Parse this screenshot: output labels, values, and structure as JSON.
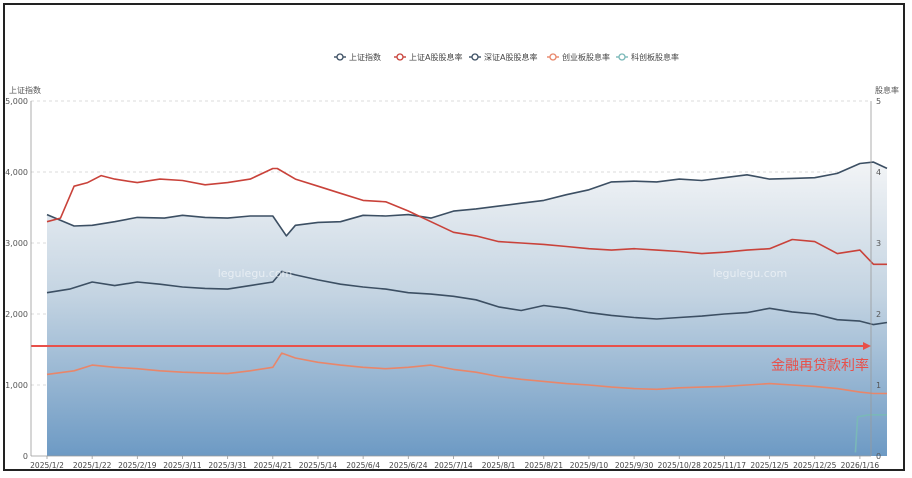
{
  "chart_data": {
    "type": "line",
    "legend_position": "top-center",
    "left_axis_title": "上证指数",
    "right_axis_title": "股息率",
    "left_ylim": [
      0,
      5000
    ],
    "right_ylim": [
      0,
      5
    ],
    "left_ticks": [
      "0",
      "1,000",
      "2,000",
      "3,000",
      "4,000",
      "5,000"
    ],
    "right_ticks": [
      "0",
      "1",
      "2",
      "3",
      "4",
      "5"
    ],
    "x_ticks": [
      "2025/1/2",
      "2025/1/22",
      "2025/2/19",
      "2025/3/11",
      "2025/3/31",
      "2025/4/21",
      "2025/5/14",
      "2025/6/4",
      "2025/6/24",
      "2025/7/14",
      "2025/8/1",
      "2025/8/21",
      "2025/9/10",
      "2025/9/30",
      "2025/10/28",
      "2025/11/17",
      "2025/12/5",
      "2025/12/25",
      "2026/1/16"
    ],
    "watermarks": [
      "legulegu.com",
      "legulegu.com"
    ],
    "reference_line": {
      "label": "金融再贷款利率",
      "value": 1.55,
      "color": "#e8504a"
    },
    "series": [
      {
        "name": "上证指数",
        "axis": "left",
        "color": "#3c4f63",
        "area": true,
        "x": [
          0,
          0.6,
          1,
          1.5,
          2,
          2.6,
          3,
          3.5,
          4,
          4.5,
          5,
          5.3,
          5.5,
          6,
          6.5,
          7,
          7.5,
          8,
          8.5,
          9,
          9.5,
          10,
          10.5,
          11,
          11.5,
          12,
          12.5,
          13,
          13.5,
          14,
          14.5,
          15,
          15.5,
          16,
          16.5,
          17,
          17.5,
          18,
          18.3,
          18.6
        ],
        "values": [
          3400,
          3240,
          3250,
          3300,
          3360,
          3350,
          3390,
          3360,
          3350,
          3380,
          3380,
          3100,
          3250,
          3290,
          3300,
          3390,
          3380,
          3400,
          3350,
          3450,
          3480,
          3520,
          3560,
          3600,
          3680,
          3750,
          3860,
          3870,
          3860,
          3900,
          3880,
          3920,
          3960,
          3900,
          3910,
          3920,
          3980,
          4120,
          4140,
          4050
        ]
      },
      {
        "name": "上证A股股息率",
        "axis": "right",
        "color": "#c9423a",
        "x": [
          0,
          0.3,
          0.6,
          0.9,
          1.2,
          1.5,
          2,
          2.5,
          3,
          3.5,
          4,
          4.5,
          5,
          5.1,
          5.5,
          6,
          6.5,
          7,
          7.5,
          8,
          8.5,
          9,
          9.5,
          10,
          10.5,
          11,
          11.5,
          12,
          12.5,
          13,
          13.5,
          14,
          14.5,
          15,
          15.5,
          16,
          16.5,
          17,
          17.5,
          18,
          18.3,
          18.6
        ],
        "values": [
          3.3,
          3.35,
          3.8,
          3.85,
          3.95,
          3.9,
          3.85,
          3.9,
          3.88,
          3.82,
          3.85,
          3.9,
          4.05,
          4.05,
          3.9,
          3.8,
          3.7,
          3.6,
          3.58,
          3.45,
          3.3,
          3.15,
          3.1,
          3.02,
          3.0,
          2.98,
          2.95,
          2.92,
          2.9,
          2.92,
          2.9,
          2.88,
          2.85,
          2.87,
          2.9,
          2.92,
          3.05,
          3.02,
          2.85,
          2.9,
          2.7,
          2.7
        ]
      },
      {
        "name": "深证A股股息率",
        "axis": "right",
        "color": "#3c4f63",
        "x": [
          0,
          0.5,
          1,
          1.5,
          2,
          2.5,
          3,
          3.5,
          4,
          4.5,
          5,
          5.2,
          5.5,
          6,
          6.5,
          7,
          7.5,
          8,
          8.5,
          9,
          9.5,
          10,
          10.5,
          11,
          11.5,
          12,
          12.5,
          13,
          13.5,
          14,
          14.5,
          15,
          15.5,
          16,
          16.5,
          17,
          17.5,
          18,
          18.3,
          18.6
        ],
        "values": [
          2.3,
          2.35,
          2.45,
          2.4,
          2.45,
          2.42,
          2.38,
          2.36,
          2.35,
          2.4,
          2.45,
          2.6,
          2.55,
          2.48,
          2.42,
          2.38,
          2.35,
          2.3,
          2.28,
          2.25,
          2.2,
          2.1,
          2.05,
          2.12,
          2.08,
          2.02,
          1.98,
          1.95,
          1.93,
          1.95,
          1.97,
          2.0,
          2.02,
          2.08,
          2.03,
          2.0,
          1.92,
          1.9,
          1.85,
          1.88
        ]
      },
      {
        "name": "创业板股息率",
        "axis": "right",
        "color": "#e8866a",
        "x": [
          0,
          0.6,
          1,
          1.5,
          2,
          2.5,
          3,
          3.5,
          4,
          4.5,
          5,
          5.2,
          5.5,
          6,
          6.5,
          7,
          7.5,
          8,
          8.5,
          9,
          9.5,
          10,
          10.5,
          11,
          11.5,
          12,
          12.5,
          13,
          13.5,
          14,
          14.5,
          15,
          15.5,
          16,
          16.5,
          17,
          17.5,
          18,
          18.3,
          18.6
        ],
        "values": [
          1.15,
          1.2,
          1.28,
          1.25,
          1.23,
          1.2,
          1.18,
          1.17,
          1.16,
          1.2,
          1.25,
          1.45,
          1.38,
          1.32,
          1.28,
          1.25,
          1.23,
          1.25,
          1.28,
          1.22,
          1.18,
          1.12,
          1.08,
          1.05,
          1.02,
          1.0,
          0.97,
          0.95,
          0.94,
          0.96,
          0.97,
          0.98,
          1.0,
          1.02,
          1.0,
          0.98,
          0.95,
          0.9,
          0.88,
          0.88
        ]
      },
      {
        "name": "科创板股息率",
        "axis": "right",
        "color": "#7ab8b8",
        "x": [
          17.9,
          17.95,
          18.2,
          18.6
        ],
        "values": [
          0.05,
          0.55,
          0.58,
          0.58
        ]
      }
    ]
  }
}
